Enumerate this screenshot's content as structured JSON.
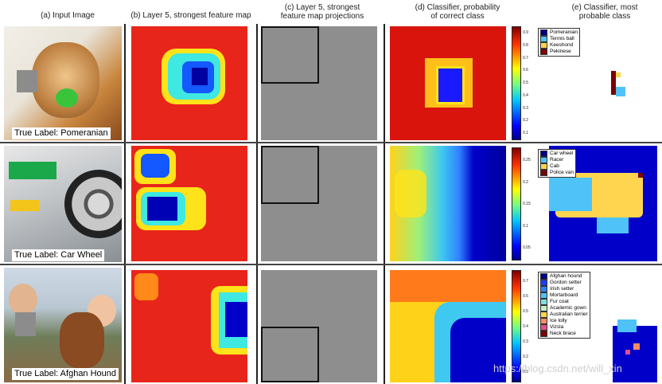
{
  "headers": {
    "a": "(a) Input Image",
    "b": "(b) Layer 5, strongest feature map",
    "c1": "(c) Layer 5, strongest",
    "c2": "feature map projections",
    "d1": "(d) Classifier, probability",
    "d2": "of correct class",
    "e1": "(e) Classifier, most",
    "e2": "probable class"
  },
  "rows": [
    {
      "true_label": "True Label: Pomeranian",
      "colorbar_ticks": [
        "0.9",
        "0.8",
        "0.7",
        "0.6",
        "0.5",
        "0.4",
        "0.3",
        "0.2",
        "0.1"
      ],
      "legend": [
        {
          "label": "Pomeranian",
          "color": "#00008b"
        },
        {
          "label": "Tennis ball",
          "color": "#4fc3f7"
        },
        {
          "label": "Keeshond",
          "color": "#ffd54f"
        },
        {
          "label": "Pekinese",
          "color": "#7b0000"
        }
      ]
    },
    {
      "true_label": "True Label: Car Wheel",
      "colorbar_ticks": [
        "0.25",
        "0.2",
        "0.15",
        "0.1",
        "0.05"
      ],
      "legend": [
        {
          "label": "Car wheel",
          "color": "#00008b"
        },
        {
          "label": "Racer",
          "color": "#4fc3f7"
        },
        {
          "label": "Cab",
          "color": "#ffd54f"
        },
        {
          "label": "Police van",
          "color": "#7b0000"
        }
      ]
    },
    {
      "true_label": "True Label: Afghan Hound",
      "colorbar_ticks": [
        "0.7",
        "0.6",
        "0.5",
        "0.4",
        "0.3",
        "0.2",
        "0.1"
      ],
      "legend": [
        {
          "label": "Afghan hound",
          "color": "#00008b"
        },
        {
          "label": "Gordon setter",
          "color": "#1e3cff"
        },
        {
          "label": "Irish setter",
          "color": "#2f7fff"
        },
        {
          "label": "Mortarboard",
          "color": "#4fc3f7"
        },
        {
          "label": "Fur coat",
          "color": "#7fe0e0"
        },
        {
          "label": "Academic gown",
          "color": "#c7f0c0"
        },
        {
          "label": "Australian terrier",
          "color": "#ffd54f"
        },
        {
          "label": "Ice lolly",
          "color": "#ff8a65"
        },
        {
          "label": "Vizsla",
          "color": "#e84d8a"
        },
        {
          "label": "Neck brace",
          "color": "#7b0000"
        }
      ]
    }
  ],
  "watermark": "https://blog.csdn.net/will_xin",
  "colors": {
    "hot": "#e8251a",
    "cold": "#0000c8"
  }
}
